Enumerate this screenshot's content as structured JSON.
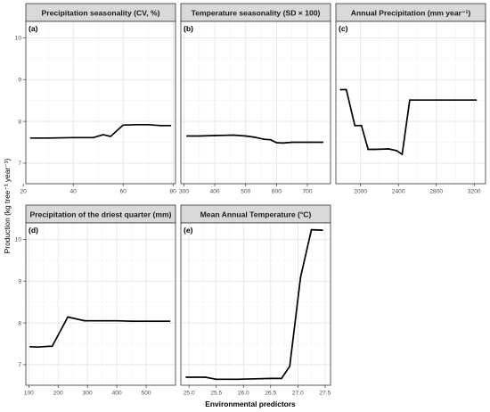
{
  "chart_data": {
    "type": "line",
    "ylabel": "Production (kg tree⁻¹ year⁻¹)",
    "xlabel": "Environmental predictors",
    "ylim": [
      6.55,
      10.35
    ],
    "yticks": [
      7,
      8,
      9,
      10
    ],
    "grid": true,
    "legend": "none",
    "line_color": "#000000",
    "panels": [
      {
        "tag": "(a)",
        "title": "Precipitation seasonality (CV, %)",
        "xlim": [
          21,
          81
        ],
        "xticks": [
          20,
          40,
          60,
          80
        ],
        "x": [
          23,
          30,
          40,
          48,
          52,
          55,
          60,
          65,
          70,
          75,
          79
        ],
        "y": [
          7.6,
          7.6,
          7.61,
          7.61,
          7.68,
          7.64,
          7.91,
          7.92,
          7.92,
          7.9,
          7.9
        ]
      },
      {
        "tag": "(b)",
        "title": "Temperature seasonality (SD × 100)",
        "xlim": [
          290,
          775
        ],
        "xticks": [
          300,
          400,
          500,
          600,
          700
        ],
        "x": [
          310,
          350,
          400,
          460,
          500,
          530,
          560,
          580,
          600,
          620,
          650,
          700,
          750
        ],
        "y": [
          7.65,
          7.65,
          7.66,
          7.67,
          7.65,
          7.62,
          7.57,
          7.56,
          7.49,
          7.48,
          7.5,
          7.5,
          7.5
        ],
        "show_yticks": false
      },
      {
        "tag": "(c)",
        "title": "Annual Precipitation (mm year⁻¹)",
        "xlim": [
          1740,
          3320
        ],
        "xticks": [
          2000,
          2400,
          2800,
          3200
        ],
        "x": [
          1790,
          1850,
          1940,
          2010,
          2080,
          2150,
          2300,
          2380,
          2440,
          2520,
          2800,
          3220
        ],
        "y": [
          8.76,
          8.76,
          7.9,
          7.9,
          7.33,
          7.33,
          7.34,
          7.3,
          7.21,
          8.51,
          8.51,
          8.51
        ],
        "show_yticks": false
      },
      {
        "tag": "(d)",
        "title": "Precipitation of the driest quarter (mm)",
        "xlim": [
          90,
          600
        ],
        "xticks": [
          100,
          200,
          300,
          400,
          500
        ],
        "x": [
          105,
          130,
          170,
          180,
          233,
          290,
          400,
          450,
          580
        ],
        "y": [
          7.43,
          7.42,
          7.44,
          7.44,
          8.14,
          8.05,
          8.05,
          8.04,
          8.04
        ]
      },
      {
        "tag": "(e)",
        "title": "Mean Annual Temperature (°C)",
        "xlim": [
          24.85,
          27.6
        ],
        "xticks": [
          25.0,
          25.5,
          26.0,
          26.5,
          27.0,
          27.5
        ],
        "tick_labels": [
          "25.0",
          "25.5",
          "26.0",
          "26.5",
          "27.0",
          "27.5"
        ],
        "x": [
          24.95,
          25.3,
          25.5,
          25.9,
          26.2,
          26.5,
          26.7,
          26.85,
          27.05,
          27.25,
          27.45
        ],
        "y": [
          6.7,
          6.7,
          6.65,
          6.65,
          6.66,
          6.67,
          6.67,
          6.96,
          9.1,
          10.23,
          10.22
        ],
        "show_yticks": false
      }
    ]
  }
}
